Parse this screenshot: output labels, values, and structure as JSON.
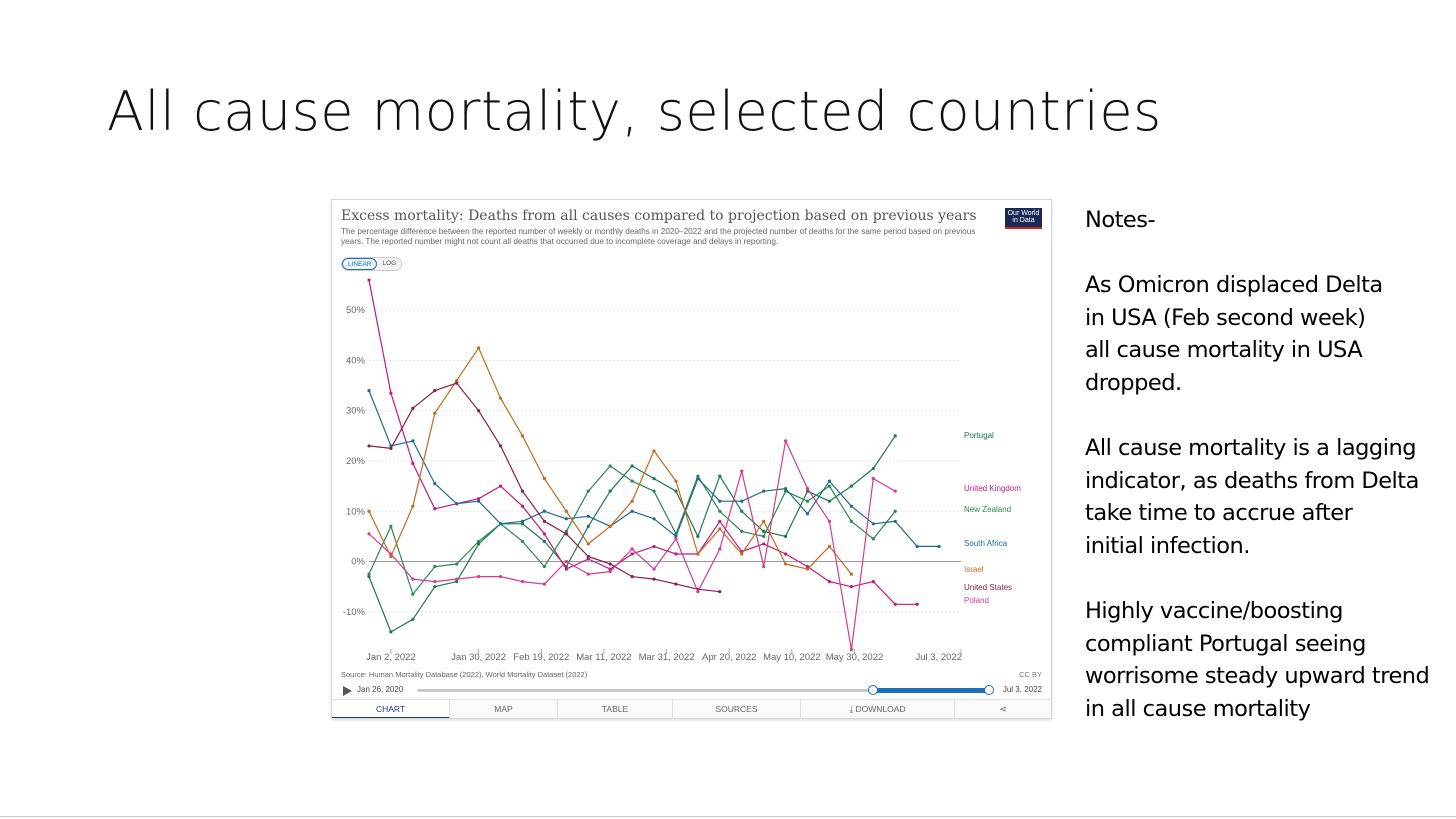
{
  "slide": {
    "title": "All cause mortality, selected countries",
    "notes": {
      "heading": "Notes-",
      "paragraphs": [
        "As Omicron displaced Delta\nin USA (Feb second week)\nall cause mortality in USA\ndropped.",
        "All cause mortality is a lagging\nindicator, as deaths from Delta\ntake time to accrue after\ninitial infection.",
        "Highly vaccine/boosting\ncompliant Portugal seeing\nworrisome steady upward trend\nin all cause mortality"
      ]
    }
  },
  "owid": {
    "title": "Excess mortality: Deaths from all causes compared to projection based on previous years",
    "subtitle": "The percentage difference between the reported number of weekly or monthly deaths in 2020–2022 and the projected number of deaths for the same period based on previous years. The reported number might not count all deaths that occurred due to incomplete coverage and delays in reporting.",
    "logo_line1": "Our World",
    "logo_line2": "in Data",
    "scale_options": [
      "LINEAR",
      "LOG"
    ],
    "selected_scale": "LINEAR",
    "source": "Source: Human Mortality Database (2022), World Mortality Dataset (2022)",
    "license": "CC BY",
    "timeline": {
      "start": "Jan 26, 2020",
      "end": "Jul 3, 2022",
      "selected_start_fraction": 0.8,
      "selected_end_fraction": 1.0
    },
    "tabs": [
      "CHART",
      "MAP",
      "TABLE",
      "SOURCES",
      "DOWNLOAD",
      ""
    ],
    "active_tab": "CHART",
    "colors": {
      "accent": "#1d6fb8",
      "brand_navy": "#1a2a56",
      "brand_red": "#ce261e"
    }
  },
  "chart_data": {
    "type": "line",
    "title": "Excess mortality: Deaths from all causes compared to projection based on previous years",
    "xlabel": "",
    "ylabel": "",
    "x_dates": [
      "2021-12-26",
      "2022-01-02",
      "2022-01-09",
      "2022-01-16",
      "2022-01-23",
      "2022-01-30",
      "2022-02-06",
      "2022-02-13",
      "2022-02-20",
      "2022-02-27",
      "2022-03-06",
      "2022-03-13",
      "2022-03-20",
      "2022-03-27",
      "2022-04-03",
      "2022-04-10",
      "2022-04-17",
      "2022-04-24",
      "2022-05-01",
      "2022-05-08",
      "2022-05-15",
      "2022-05-22",
      "2022-05-29",
      "2022-06-05",
      "2022-06-12",
      "2022-06-19",
      "2022-06-26",
      "2022-07-03"
    ],
    "x_tick_labels": [
      "Jan 2, 2022",
      "Jan 30, 2022",
      "Feb 19, 2022",
      "Mar 11, 2022",
      "Mar 31, 2022",
      "Apr 20, 2022",
      "May 10, 2022",
      "May 30, 2022",
      "Jul 3, 2022"
    ],
    "ylim": [
      -18,
      58
    ],
    "y_ticks": [
      -10,
      0,
      10,
      20,
      30,
      40,
      50
    ],
    "y_tick_labels": [
      "-10%",
      "0%",
      "10%",
      "20%",
      "30%",
      "40%",
      "50%"
    ],
    "grid": true,
    "legend_placement": "right",
    "series": [
      {
        "name": "Portugal",
        "color": "#1a7a4f",
        "values": [
          -3,
          -14,
          -11.5,
          -5,
          -4,
          3.5,
          7.5,
          7.5,
          4,
          -1,
          7,
          14,
          19,
          16.5,
          14,
          5,
          17,
          10,
          6,
          5,
          14,
          12,
          15,
          18.5,
          25,
          null,
          null,
          null
        ]
      },
      {
        "name": "United Kingdom",
        "color": "#c4187e",
        "values": [
          56,
          33.5,
          19.5,
          10.5,
          11.5,
          12.5,
          15,
          11,
          5.5,
          -1.5,
          0.5,
          -1.5,
          1.5,
          3,
          1.5,
          1.5,
          8,
          2,
          3.5,
          1.5,
          -1,
          -4,
          -5,
          -4,
          -8.5,
          -8.5,
          null,
          null
        ]
      },
      {
        "name": "New Zealand",
        "color": "#2a8a4a",
        "values": [
          -2.5,
          7,
          -6.5,
          -1,
          -0.5,
          4,
          7.5,
          4,
          -1,
          6,
          14,
          19,
          16,
          14,
          5.5,
          17,
          10,
          6,
          5,
          14,
          12,
          15,
          8,
          4.5,
          10,
          null,
          null,
          null
        ]
      },
      {
        "name": "South Africa",
        "color": "#1e6b8f",
        "values": [
          34,
          23,
          24,
          15.5,
          11.5,
          12,
          7.5,
          8,
          10,
          8.5,
          9,
          7,
          10,
          8.5,
          5,
          16.5,
          12,
          12,
          14,
          14.5,
          9.5,
          16,
          11,
          7.5,
          8,
          3,
          3,
          null
        ]
      },
      {
        "name": "Israel",
        "color": "#c46a1e",
        "values": [
          10,
          1,
          11,
          29.5,
          36,
          42.5,
          32.5,
          25,
          16.5,
          10,
          3.5,
          7,
          12,
          22,
          16,
          1.5,
          6.5,
          1.5,
          8,
          -0.5,
          -1.5,
          3,
          -2.5,
          null,
          null,
          null,
          null,
          null
        ]
      },
      {
        "name": "United States",
        "color": "#8a1e4a",
        "values": [
          23,
          22.5,
          30.5,
          34,
          35.5,
          30,
          23,
          14,
          8,
          5.5,
          1,
          -0.5,
          -3,
          -3.5,
          -4.5,
          -5.5,
          -6,
          null,
          null,
          null,
          null,
          null,
          null,
          null,
          null,
          null,
          null,
          null
        ]
      },
      {
        "name": "Poland",
        "color": "#d23c8c",
        "values": [
          5.5,
          1.5,
          -3.5,
          -4,
          -3.5,
          -3,
          -3,
          -4,
          -4.5,
          0,
          -2.5,
          -2,
          2.5,
          -1.5,
          4.5,
          -6,
          2.5,
          18,
          -1,
          24,
          14.5,
          8,
          -17.5,
          16.5,
          14,
          null,
          null,
          null
        ]
      }
    ]
  }
}
